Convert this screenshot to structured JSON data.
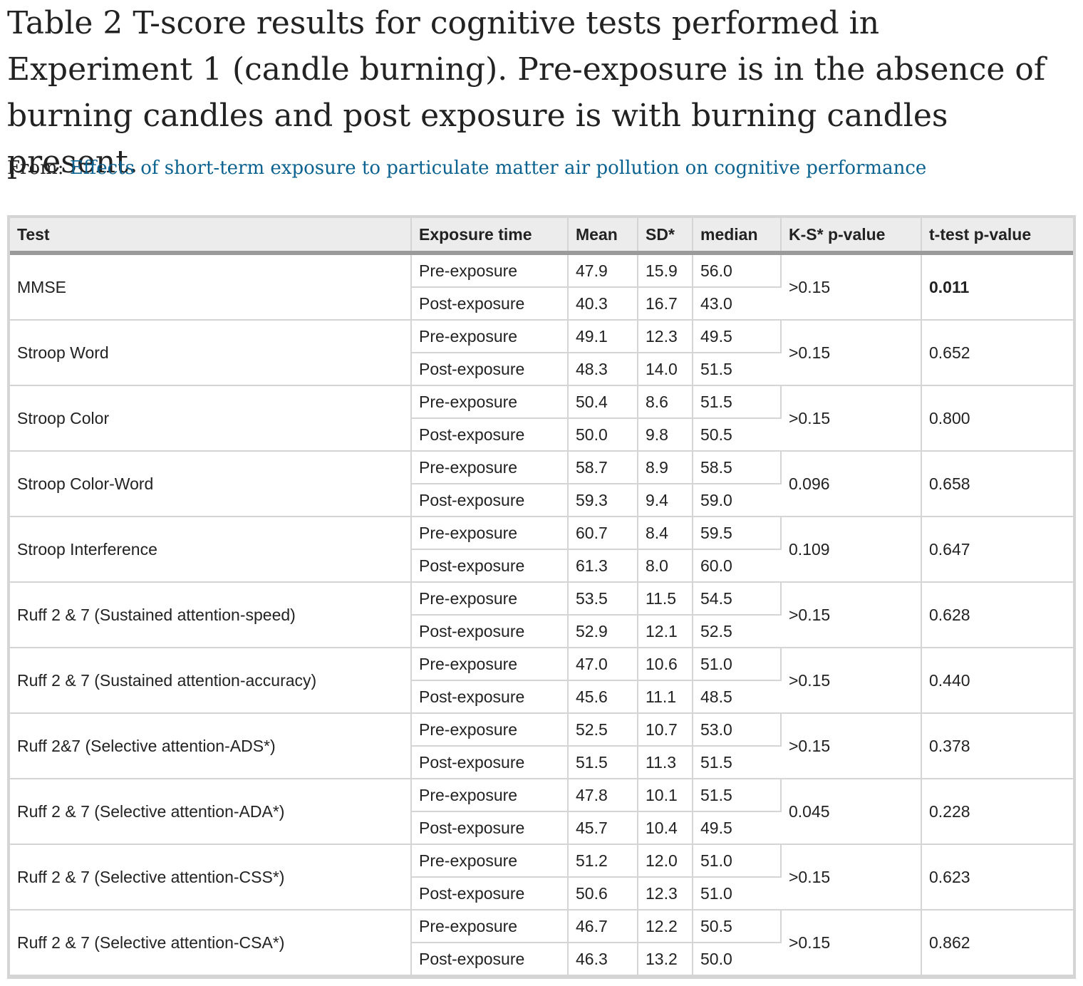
{
  "caption": "Table 2 T-score results for cognitive tests performed in Experiment 1 (candle burning). Pre-exposure is in the absence of burning candles and post exposure is with burning candles present.",
  "from_label": "From:",
  "from_link": "Effects of short-term exposure to particulate matter air pollution on cognitive performance",
  "columns": [
    "Test",
    "Exposure time",
    "Mean",
    "SD*",
    "median",
    "K-S* p-value",
    "t-test p-value"
  ],
  "rows": [
    {
      "test": "MMSE",
      "ks": ">0.15",
      "ttest": "0.011",
      "ttest_bold": true,
      "pre": {
        "label": "Pre-exposure",
        "mean": "47.9",
        "sd": "15.9",
        "median": "56.0"
      },
      "post": {
        "label": "Post-exposure",
        "mean": "40.3",
        "sd": "16.7",
        "median": "43.0"
      }
    },
    {
      "test": "Stroop Word",
      "ks": ">0.15",
      "ttest": "0.652",
      "ttest_bold": false,
      "pre": {
        "label": "Pre-exposure",
        "mean": "49.1",
        "sd": "12.3",
        "median": "49.5"
      },
      "post": {
        "label": "Post-exposure",
        "mean": "48.3",
        "sd": "14.0",
        "median": "51.5"
      }
    },
    {
      "test": "Stroop Color",
      "ks": ">0.15",
      "ttest": "0.800",
      "ttest_bold": false,
      "pre": {
        "label": "Pre-exposure",
        "mean": "50.4",
        "sd": "8.6",
        "median": "51.5"
      },
      "post": {
        "label": "Post-exposure",
        "mean": "50.0",
        "sd": "9.8",
        "median": "50.5"
      }
    },
    {
      "test": "Stroop Color-Word",
      "ks": "0.096",
      "ttest": "0.658",
      "ttest_bold": false,
      "pre": {
        "label": "Pre-exposure",
        "mean": "58.7",
        "sd": "8.9",
        "median": "58.5"
      },
      "post": {
        "label": "Post-exposure",
        "mean": "59.3",
        "sd": "9.4",
        "median": "59.0"
      }
    },
    {
      "test": "Stroop Interference",
      "ks": "0.109",
      "ttest": "0.647",
      "ttest_bold": false,
      "pre": {
        "label": "Pre-exposure",
        "mean": "60.7",
        "sd": "8.4",
        "median": "59.5"
      },
      "post": {
        "label": "Post-exposure",
        "mean": "61.3",
        "sd": "8.0",
        "median": "60.0"
      }
    },
    {
      "test": "Ruff 2 & 7 (Sustained attention-speed)",
      "ks": ">0.15",
      "ttest": "0.628",
      "ttest_bold": false,
      "pre": {
        "label": "Pre-exposure",
        "mean": "53.5",
        "sd": "11.5",
        "median": "54.5"
      },
      "post": {
        "label": "Post-exposure",
        "mean": "52.9",
        "sd": "12.1",
        "median": "52.5"
      }
    },
    {
      "test": "Ruff 2 & 7 (Sustained attention-accuracy)",
      "ks": ">0.15",
      "ttest": "0.440",
      "ttest_bold": false,
      "pre": {
        "label": "Pre-exposure",
        "mean": "47.0",
        "sd": "10.6",
        "median": "51.0"
      },
      "post": {
        "label": "Post-exposure",
        "mean": "45.6",
        "sd": "11.1",
        "median": "48.5"
      }
    },
    {
      "test": "Ruff 2&7 (Selective attention-ADS*)",
      "ks": ">0.15",
      "ttest": "0.378",
      "ttest_bold": false,
      "pre": {
        "label": "Pre-exposure",
        "mean": "52.5",
        "sd": "10.7",
        "median": "53.0"
      },
      "post": {
        "label": "Post-exposure",
        "mean": "51.5",
        "sd": "11.3",
        "median": "51.5"
      }
    },
    {
      "test": "Ruff 2 & 7 (Selective attention-ADA*)",
      "ks": "0.045",
      "ttest": "0.228",
      "ttest_bold": false,
      "pre": {
        "label": "Pre-exposure",
        "mean": "47.8",
        "sd": "10.1",
        "median": "51.5"
      },
      "post": {
        "label": "Post-exposure",
        "mean": "45.7",
        "sd": "10.4",
        "median": "49.5"
      }
    },
    {
      "test": "Ruff 2 & 7 (Selective attention-CSS*)",
      "ks": ">0.15",
      "ttest": "0.623",
      "ttest_bold": false,
      "pre": {
        "label": "Pre-exposure",
        "mean": "51.2",
        "sd": "12.0",
        "median": "51.0"
      },
      "post": {
        "label": "Post-exposure",
        "mean": "50.6",
        "sd": "12.3",
        "median": "51.0"
      }
    },
    {
      "test": "Ruff 2 & 7 (Selective attention-CSA*)",
      "ks": ">0.15",
      "ttest": "0.862",
      "ttest_bold": false,
      "pre": {
        "label": "Pre-exposure",
        "mean": "46.7",
        "sd": "12.2",
        "median": "50.5"
      },
      "post": {
        "label": "Post-exposure",
        "mean": "46.3",
        "sd": "13.2",
        "median": "50.0"
      }
    }
  ]
}
